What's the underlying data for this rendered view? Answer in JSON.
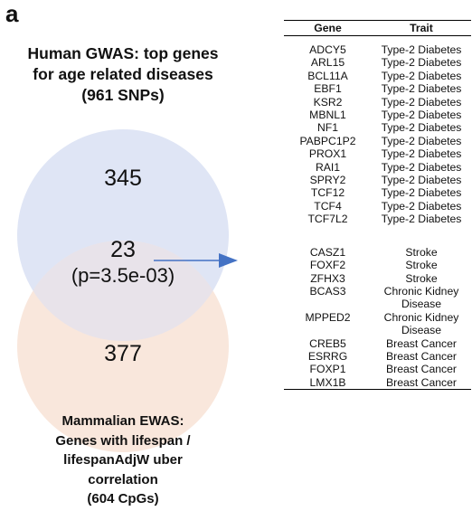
{
  "panel_label": "a",
  "top_heading": [
    "Human GWAS: top genes",
    "for age related diseases",
    "(961 SNPs)"
  ],
  "bottom_heading": [
    "Mammalian EWAS:",
    "Genes with lifespan /",
    "lifespanAdjW uber",
    "correlation",
    "(604 CpGs)"
  ],
  "venn": {
    "human_only": "345",
    "overlap": "23",
    "p_value": "(p=3.5e-03)",
    "mammal_only": "377",
    "colors": {
      "human": "#dfe5f5",
      "mammal": "#f9e7dc",
      "arrow": "#4472c4"
    }
  },
  "table": {
    "headers": [
      "Gene",
      "Trait"
    ],
    "groups": [
      [
        [
          "ADCY5",
          "Type-2 Diabetes"
        ],
        [
          "ARL15",
          "Type-2 Diabetes"
        ],
        [
          "BCL11A",
          "Type-2 Diabetes"
        ],
        [
          "EBF1",
          "Type-2 Diabetes"
        ],
        [
          "KSR2",
          "Type-2 Diabetes"
        ],
        [
          "MBNL1",
          "Type-2 Diabetes"
        ],
        [
          "NF1",
          "Type-2 Diabetes"
        ],
        [
          "PABPC1P2",
          "Type-2 Diabetes"
        ],
        [
          "PROX1",
          "Type-2 Diabetes"
        ],
        [
          "RAI1",
          "Type-2 Diabetes"
        ],
        [
          "SPRY2",
          "Type-2 Diabetes"
        ],
        [
          "TCF12",
          "Type-2 Diabetes"
        ],
        [
          "TCF4",
          "Type-2 Diabetes"
        ],
        [
          "TCF7L2",
          "Type-2 Diabetes"
        ]
      ],
      [
        [
          "CASZ1",
          "Stroke"
        ],
        [
          "FOXF2",
          "Stroke"
        ],
        [
          "ZFHX3",
          "Stroke"
        ],
        [
          "BCAS3",
          "Chronic Kidney Disease"
        ],
        [
          "MPPED2",
          "Chronic Kidney Disease"
        ],
        [
          "CREB5",
          "Breast Cancer"
        ],
        [
          "ESRRG",
          "Breast Cancer"
        ],
        [
          "FOXP1",
          "Breast Cancer"
        ],
        [
          "LMX1B",
          "Breast Cancer"
        ]
      ]
    ]
  }
}
